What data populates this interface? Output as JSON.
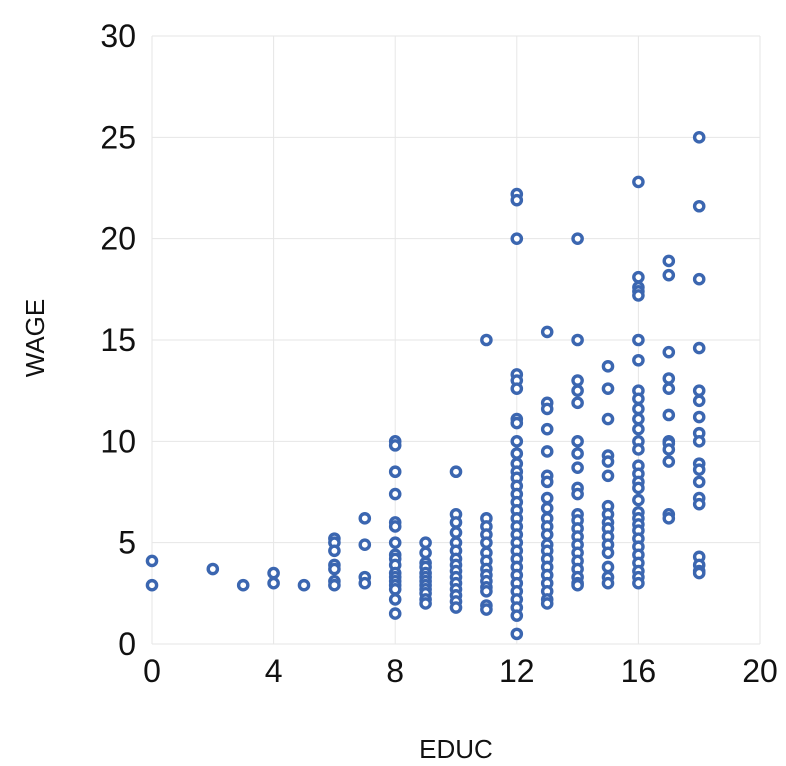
{
  "chart_data": {
    "type": "scatter",
    "title": "",
    "xlabel": "EDUC",
    "ylabel": "WAGE",
    "xlim": [
      0,
      20
    ],
    "ylim": [
      0,
      30
    ],
    "xticks": [
      0,
      4,
      8,
      12,
      16,
      20
    ],
    "yticks": [
      0,
      5,
      10,
      15,
      20,
      25,
      30
    ],
    "grid": true,
    "color": "#3b66b0",
    "marker": "hollow-circle",
    "points": [
      [
        0,
        4.1
      ],
      [
        0,
        2.9
      ],
      [
        2,
        3.7
      ],
      [
        3,
        2.9
      ],
      [
        4,
        3.5
      ],
      [
        4,
        3.0
      ],
      [
        5,
        2.9
      ],
      [
        6,
        5.2
      ],
      [
        6,
        5.0
      ],
      [
        6,
        4.6
      ],
      [
        6,
        3.9
      ],
      [
        6,
        3.7
      ],
      [
        6,
        3.1
      ],
      [
        6,
        2.9
      ],
      [
        7,
        6.2
      ],
      [
        7,
        4.9
      ],
      [
        7,
        3.3
      ],
      [
        7,
        3.0
      ],
      [
        8,
        10.0
      ],
      [
        8,
        9.8
      ],
      [
        8,
        8.5
      ],
      [
        8,
        7.4
      ],
      [
        8,
        6.0
      ],
      [
        8,
        5.8
      ],
      [
        8,
        5.0
      ],
      [
        8,
        4.4
      ],
      [
        8,
        4.2
      ],
      [
        8,
        3.9
      ],
      [
        8,
        3.5
      ],
      [
        8,
        3.3
      ],
      [
        8,
        3.1
      ],
      [
        8,
        2.9
      ],
      [
        8,
        2.7
      ],
      [
        8,
        2.2
      ],
      [
        8,
        1.5
      ],
      [
        9,
        5.0
      ],
      [
        9,
        4.5
      ],
      [
        9,
        4.0
      ],
      [
        9,
        3.8
      ],
      [
        9,
        3.5
      ],
      [
        9,
        3.3
      ],
      [
        9,
        3.1
      ],
      [
        9,
        2.9
      ],
      [
        9,
        2.7
      ],
      [
        9,
        2.5
      ],
      [
        9,
        2.2
      ],
      [
        9,
        2.0
      ],
      [
        10,
        8.5
      ],
      [
        10,
        6.4
      ],
      [
        10,
        6.0
      ],
      [
        10,
        5.5
      ],
      [
        10,
        5.0
      ],
      [
        10,
        4.6
      ],
      [
        10,
        4.2
      ],
      [
        10,
        3.9
      ],
      [
        10,
        3.6
      ],
      [
        10,
        3.3
      ],
      [
        10,
        3.0
      ],
      [
        10,
        2.7
      ],
      [
        10,
        2.4
      ],
      [
        10,
        2.1
      ],
      [
        10,
        1.8
      ],
      [
        11,
        15.0
      ],
      [
        11,
        6.2
      ],
      [
        11,
        5.8
      ],
      [
        11,
        5.4
      ],
      [
        11,
        5.0
      ],
      [
        11,
        4.5
      ],
      [
        11,
        4.1
      ],
      [
        11,
        3.7
      ],
      [
        11,
        3.4
      ],
      [
        11,
        3.1
      ],
      [
        11,
        2.8
      ],
      [
        11,
        2.6
      ],
      [
        11,
        1.9
      ],
      [
        11,
        1.7
      ],
      [
        12,
        22.2
      ],
      [
        12,
        21.9
      ],
      [
        12,
        20.0
      ],
      [
        12,
        13.3
      ],
      [
        12,
        13.0
      ],
      [
        12,
        12.6
      ],
      [
        12,
        11.1
      ],
      [
        12,
        10.9
      ],
      [
        12,
        10.0
      ],
      [
        12,
        9.4
      ],
      [
        12,
        8.9
      ],
      [
        12,
        8.5
      ],
      [
        12,
        8.2
      ],
      [
        12,
        7.8
      ],
      [
        12,
        7.4
      ],
      [
        12,
        7.0
      ],
      [
        12,
        6.6
      ],
      [
        12,
        6.2
      ],
      [
        12,
        5.8
      ],
      [
        12,
        5.4
      ],
      [
        12,
        5.0
      ],
      [
        12,
        4.6
      ],
      [
        12,
        4.2
      ],
      [
        12,
        3.8
      ],
      [
        12,
        3.4
      ],
      [
        12,
        3.0
      ],
      [
        12,
        2.6
      ],
      [
        12,
        2.2
      ],
      [
        12,
        1.8
      ],
      [
        12,
        1.4
      ],
      [
        12,
        0.5
      ],
      [
        13,
        15.4
      ],
      [
        13,
        11.9
      ],
      [
        13,
        11.6
      ],
      [
        13,
        10.6
      ],
      [
        13,
        9.5
      ],
      [
        13,
        8.3
      ],
      [
        13,
        8.0
      ],
      [
        13,
        7.2
      ],
      [
        13,
        6.7
      ],
      [
        13,
        6.2
      ],
      [
        13,
        5.8
      ],
      [
        13,
        5.4
      ],
      [
        13,
        4.9
      ],
      [
        13,
        4.6
      ],
      [
        13,
        4.2
      ],
      [
        13,
        3.8
      ],
      [
        13,
        3.4
      ],
      [
        13,
        3.0
      ],
      [
        13,
        2.6
      ],
      [
        13,
        2.2
      ],
      [
        13,
        2.0
      ],
      [
        14,
        20.0
      ],
      [
        14,
        15.0
      ],
      [
        14,
        13.0
      ],
      [
        14,
        12.5
      ],
      [
        14,
        11.9
      ],
      [
        14,
        10.0
      ],
      [
        14,
        9.4
      ],
      [
        14,
        8.7
      ],
      [
        14,
        7.7
      ],
      [
        14,
        7.4
      ],
      [
        14,
        6.4
      ],
      [
        14,
        6.1
      ],
      [
        14,
        5.7
      ],
      [
        14,
        5.3
      ],
      [
        14,
        4.9
      ],
      [
        14,
        4.5
      ],
      [
        14,
        4.1
      ],
      [
        14,
        3.7
      ],
      [
        14,
        3.3
      ],
      [
        14,
        3.0
      ],
      [
        14,
        2.9
      ],
      [
        15,
        13.7
      ],
      [
        15,
        12.6
      ],
      [
        15,
        11.1
      ],
      [
        15,
        9.3
      ],
      [
        15,
        9.0
      ],
      [
        15,
        8.3
      ],
      [
        15,
        6.8
      ],
      [
        15,
        6.4
      ],
      [
        15,
        6.0
      ],
      [
        15,
        5.7
      ],
      [
        15,
        5.3
      ],
      [
        15,
        4.9
      ],
      [
        15,
        4.5
      ],
      [
        15,
        3.8
      ],
      [
        15,
        3.3
      ],
      [
        15,
        3.0
      ],
      [
        16,
        22.8
      ],
      [
        16,
        18.1
      ],
      [
        16,
        17.6
      ],
      [
        16,
        17.4
      ],
      [
        16,
        17.2
      ],
      [
        16,
        15.0
      ],
      [
        16,
        14.0
      ],
      [
        16,
        12.5
      ],
      [
        16,
        12.1
      ],
      [
        16,
        11.6
      ],
      [
        16,
        11.1
      ],
      [
        16,
        10.6
      ],
      [
        16,
        10.0
      ],
      [
        16,
        9.6
      ],
      [
        16,
        8.8
      ],
      [
        16,
        8.4
      ],
      [
        16,
        8.0
      ],
      [
        16,
        7.7
      ],
      [
        16,
        7.1
      ],
      [
        16,
        6.5
      ],
      [
        16,
        6.2
      ],
      [
        16,
        5.9
      ],
      [
        16,
        5.6
      ],
      [
        16,
        5.2
      ],
      [
        16,
        4.8
      ],
      [
        16,
        4.4
      ],
      [
        16,
        4.0
      ],
      [
        16,
        3.6
      ],
      [
        16,
        3.3
      ],
      [
        16,
        3.0
      ],
      [
        17,
        18.9
      ],
      [
        17,
        18.2
      ],
      [
        17,
        14.4
      ],
      [
        17,
        13.1
      ],
      [
        17,
        12.6
      ],
      [
        17,
        11.3
      ],
      [
        17,
        10.0
      ],
      [
        17,
        9.9
      ],
      [
        17,
        9.6
      ],
      [
        17,
        9.0
      ],
      [
        17,
        6.4
      ],
      [
        17,
        6.2
      ],
      [
        18,
        25.0
      ],
      [
        18,
        21.6
      ],
      [
        18,
        18.0
      ],
      [
        18,
        14.6
      ],
      [
        18,
        12.5
      ],
      [
        18,
        12.0
      ],
      [
        18,
        11.2
      ],
      [
        18,
        10.4
      ],
      [
        18,
        10.0
      ],
      [
        18,
        8.9
      ],
      [
        18,
        8.6
      ],
      [
        18,
        8.0
      ],
      [
        18,
        7.2
      ],
      [
        18,
        6.9
      ],
      [
        18,
        4.3
      ],
      [
        18,
        3.9
      ],
      [
        18,
        3.6
      ],
      [
        18,
        3.5
      ]
    ]
  }
}
